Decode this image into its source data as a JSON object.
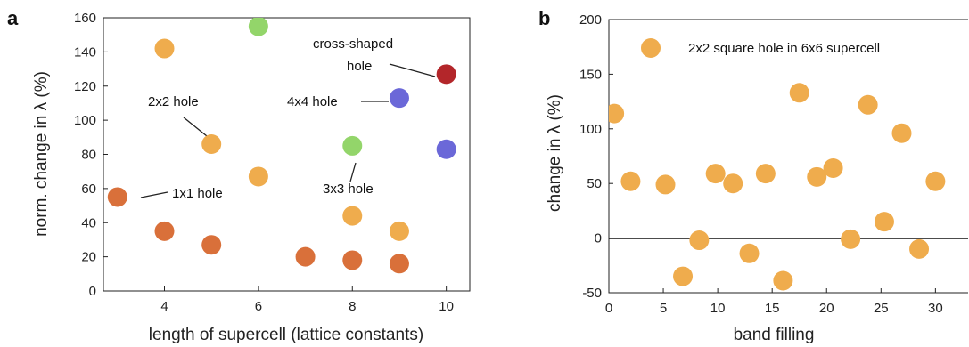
{
  "chart_data": [
    {
      "panel_label": "a",
      "type": "scatter",
      "title": "",
      "xlabel": "length of supercell (lattice constants)",
      "ylabel": "norm. change in λ (%)",
      "xlim": [
        2.7,
        10.5
      ],
      "ylim": [
        0,
        160
      ],
      "xticks": [
        4,
        6,
        8,
        10
      ],
      "yticks": [
        0,
        20,
        40,
        60,
        80,
        100,
        120,
        140,
        160
      ],
      "grid": false,
      "legend": "none",
      "series": [
        {
          "color": "#d9703a",
          "points": [
            {
              "x": 3,
              "y": 55
            },
            {
              "x": 4,
              "y": 35
            },
            {
              "x": 5,
              "y": 27
            },
            {
              "x": 7,
              "y": 20
            },
            {
              "x": 8,
              "y": 18
            },
            {
              "x": 9,
              "y": 16
            }
          ]
        },
        {
          "color": "#efac4d",
          "points": [
            {
              "x": 4,
              "y": 142
            },
            {
              "x": 5,
              "y": 86
            },
            {
              "x": 6,
              "y": 67
            },
            {
              "x": 8,
              "y": 44
            },
            {
              "x": 9,
              "y": 35
            }
          ]
        },
        {
          "color": "#93d56a",
          "points": [
            {
              "x": 6,
              "y": 155
            },
            {
              "x": 8,
              "y": 85
            }
          ]
        },
        {
          "color": "#6b68d8",
          "points": [
            {
              "x": 9,
              "y": 113
            },
            {
              "x": 10,
              "y": 83
            }
          ]
        },
        {
          "color": "#b3262a",
          "points": [
            {
              "x": 10,
              "y": 127
            }
          ]
        }
      ],
      "annotations": [
        {
          "text": "1x1 hole"
        },
        {
          "text": "2x2 hole"
        },
        {
          "text": "3x3 hole"
        },
        {
          "text": "4x4 hole"
        },
        {
          "text": "cross-shaped"
        },
        {
          "text": "hole"
        }
      ]
    },
    {
      "panel_label": "b",
      "type": "scatter",
      "title": "",
      "xlabel": "band filling",
      "ylabel": "change in λ (%)",
      "xlim": [
        0,
        33
      ],
      "ylim": [
        -50,
        200
      ],
      "xticks": [
        0,
        5,
        10,
        15,
        20,
        25,
        30
      ],
      "yticks": [
        -50,
        0,
        50,
        100,
        150,
        200
      ],
      "grid": false,
      "zero_line": true,
      "legend": "top-left",
      "series": [
        {
          "name": "2x2 square hole in 6x6 supercell",
          "color": "#efac4d",
          "points": [
            {
              "x": 0.5,
              "y": 114
            },
            {
              "x": 2,
              "y": 52
            },
            {
              "x": 5.2,
              "y": 49
            },
            {
              "x": 6.8,
              "y": -35
            },
            {
              "x": 8.3,
              "y": -2
            },
            {
              "x": 9.8,
              "y": 59
            },
            {
              "x": 11.4,
              "y": 50
            },
            {
              "x": 12.9,
              "y": -14
            },
            {
              "x": 14.4,
              "y": 59
            },
            {
              "x": 16,
              "y": -39
            },
            {
              "x": 17.5,
              "y": 133
            },
            {
              "x": 19.1,
              "y": 56
            },
            {
              "x": 20.6,
              "y": 64
            },
            {
              "x": 22.2,
              "y": -1
            },
            {
              "x": 23.8,
              "y": 122
            },
            {
              "x": 25.3,
              "y": 15
            },
            {
              "x": 26.9,
              "y": 96
            },
            {
              "x": 28.5,
              "y": -10
            },
            {
              "x": 30,
              "y": 52
            }
          ]
        }
      ]
    }
  ]
}
